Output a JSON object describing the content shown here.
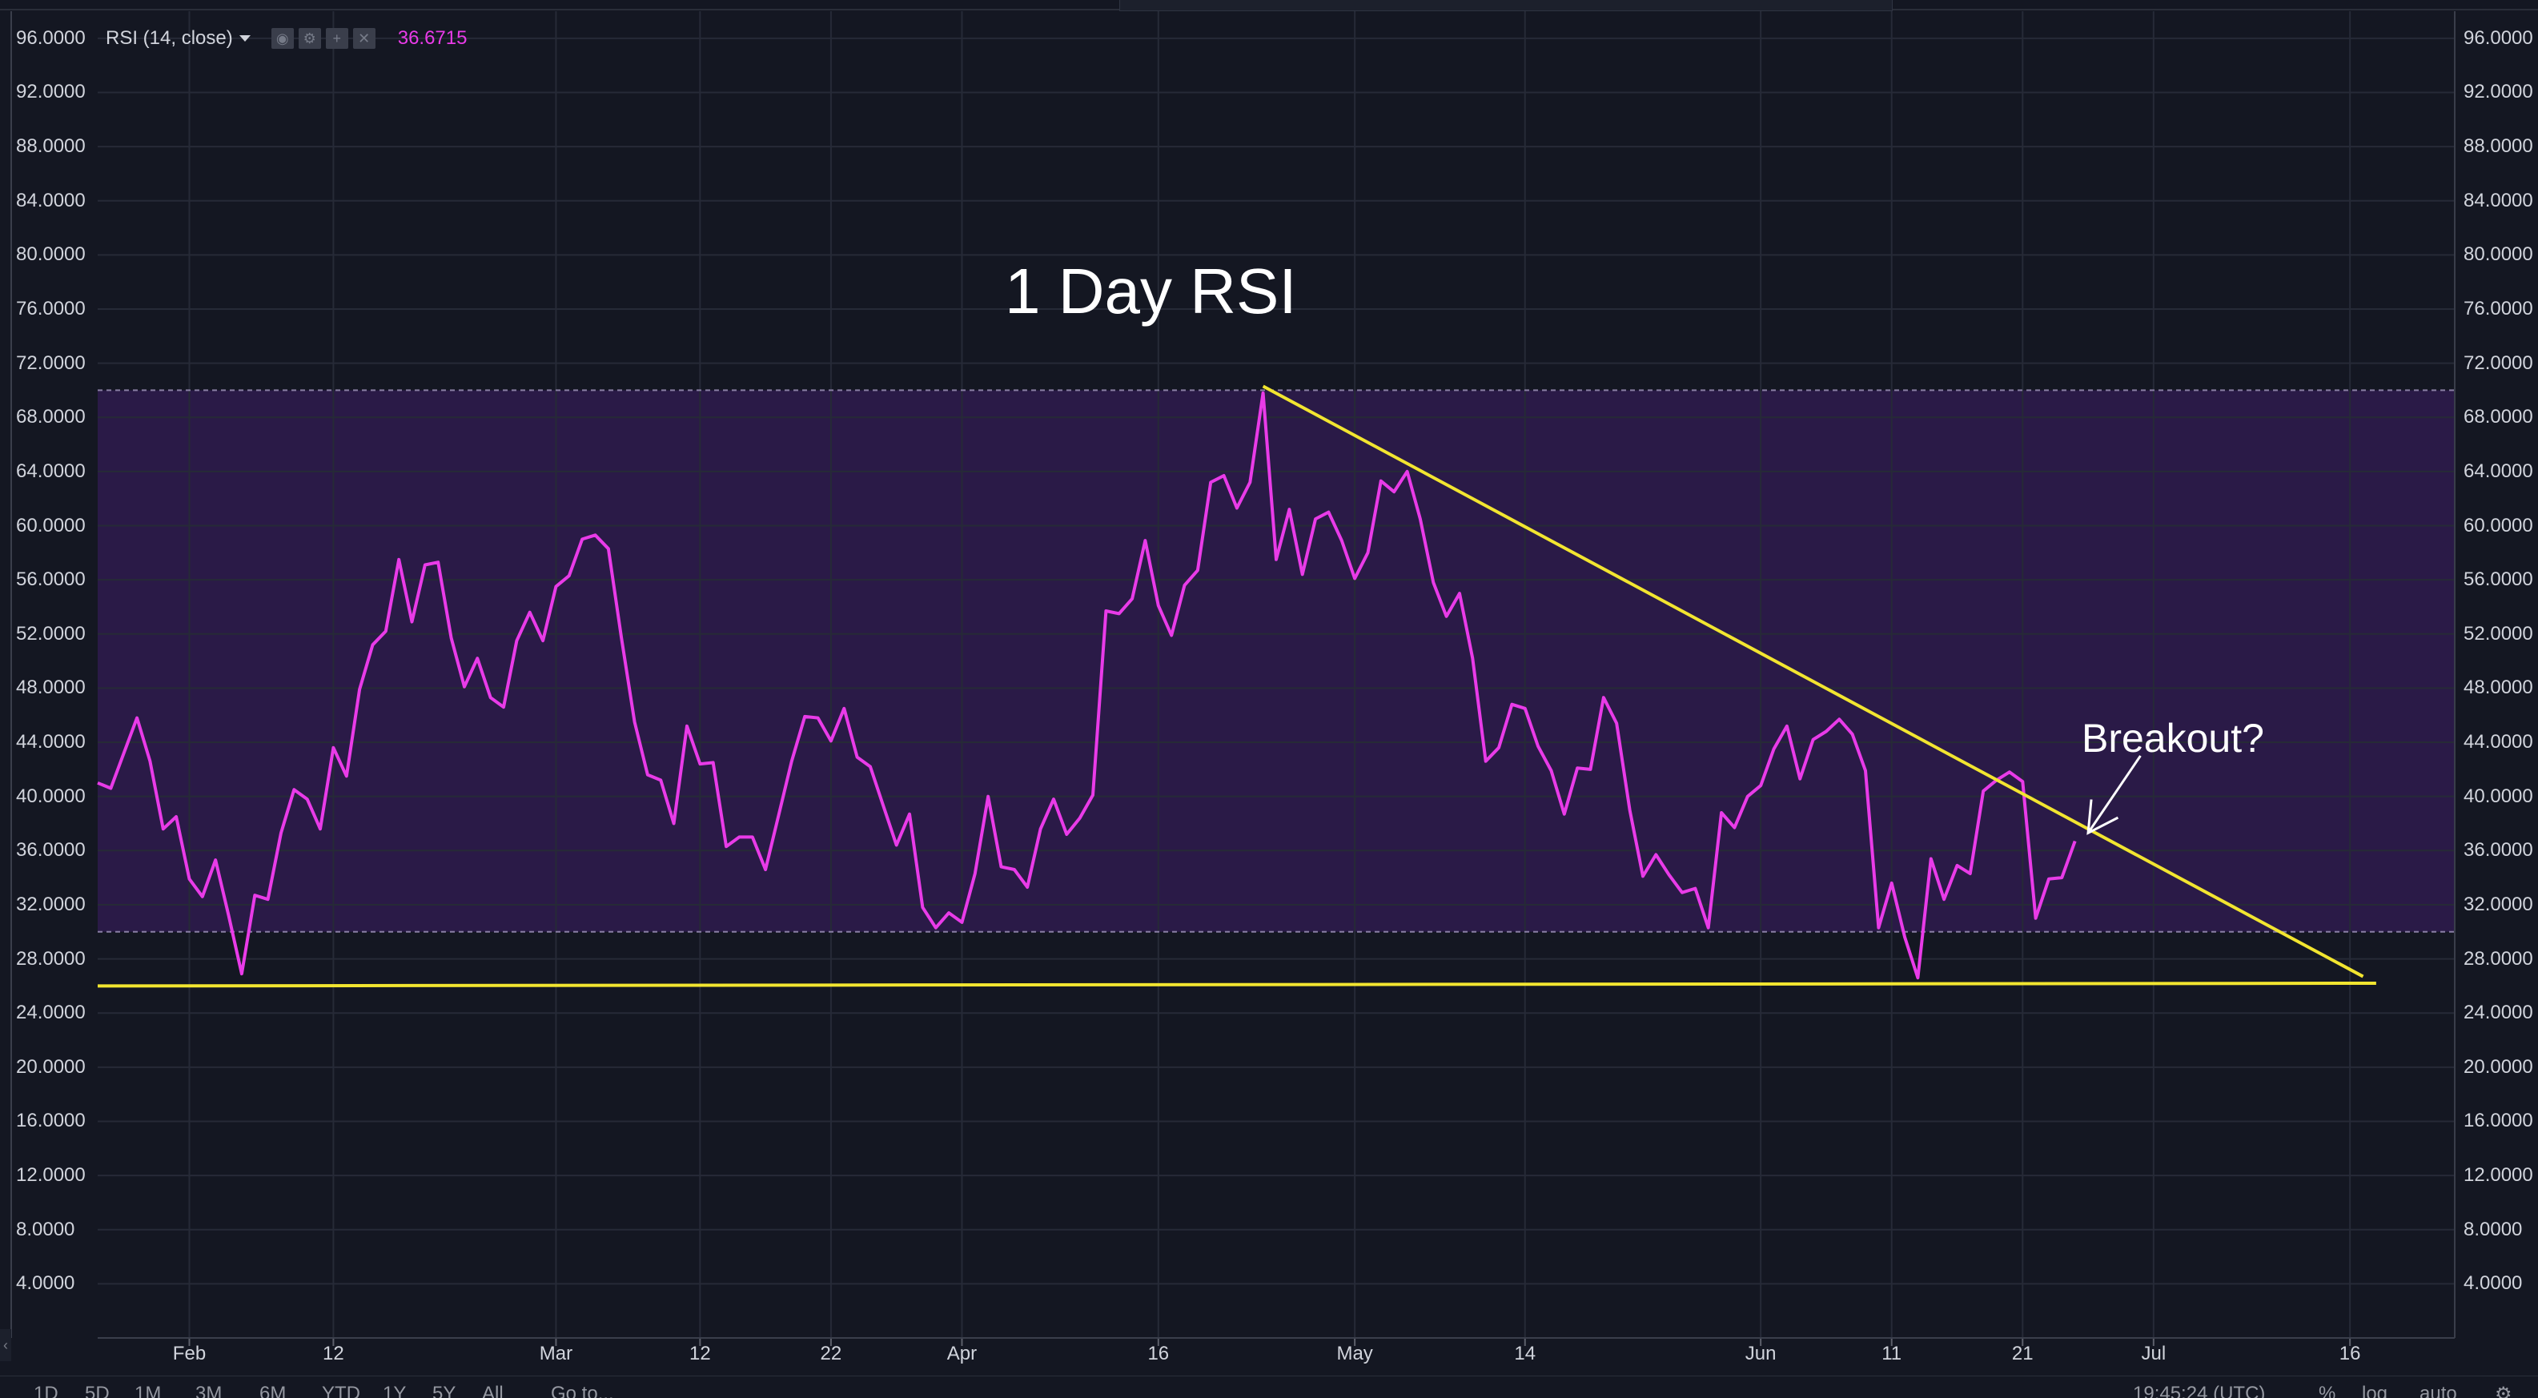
{
  "indicator": {
    "label": "RSI (14, close)",
    "value": "36.6715",
    "buttons": [
      "eye-icon",
      "gear-icon",
      "plus-icon",
      "close-icon"
    ],
    "line_color": "#e93be8",
    "band_color": "#2a1a47"
  },
  "colors": {
    "background": "#141722",
    "grid": "#262a37",
    "trendline": "#f2e530",
    "text": "#d1d4dc"
  },
  "annotations": {
    "title": "1 Day RSI",
    "breakout": "Breakout?"
  },
  "bottom_toolbar": {
    "ranges": [
      "1D",
      "5D",
      "1M",
      "3M",
      "6M",
      "YTD",
      "1Y",
      "5Y",
      "All"
    ],
    "goto": "Go to...",
    "time": "19:45:24 (UTC)",
    "percent": "%",
    "log": "log",
    "auto": "auto"
  },
  "chart_data": {
    "type": "line",
    "title": "1 Day RSI",
    "xlabel": "",
    "ylabel": "",
    "x_range": [
      "2018-01-25",
      "2018-07-24"
    ],
    "ylim": [
      0,
      98
    ],
    "y_ticks": [
      "4.0000",
      "8.0000",
      "12.0000",
      "16.0000",
      "20.0000",
      "24.0000",
      "28.0000",
      "32.0000",
      "36.0000",
      "40.0000",
      "44.0000",
      "48.0000",
      "52.0000",
      "56.0000",
      "60.0000",
      "64.0000",
      "68.0000",
      "72.0000",
      "76.0000",
      "80.0000",
      "84.0000",
      "88.0000",
      "92.0000",
      "96.0000"
    ],
    "x_ticks": [
      {
        "label": "Feb",
        "date": "2018-02-01"
      },
      {
        "label": "12",
        "date": "2018-02-12"
      },
      {
        "label": "Mar",
        "date": "2018-03-01"
      },
      {
        "label": "12",
        "date": "2018-03-12"
      },
      {
        "label": "22",
        "date": "2018-03-22"
      },
      {
        "label": "Apr",
        "date": "2018-04-01"
      },
      {
        "label": "16",
        "date": "2018-04-16"
      },
      {
        "label": "May",
        "date": "2018-05-01"
      },
      {
        "label": "14",
        "date": "2018-05-14"
      },
      {
        "label": "Jun",
        "date": "2018-06-01"
      },
      {
        "label": "11",
        "date": "2018-06-11"
      },
      {
        "label": "21",
        "date": "2018-06-21"
      },
      {
        "label": "Jul",
        "date": "2018-07-01"
      },
      {
        "label": "16",
        "date": "2018-07-16"
      }
    ],
    "bands": {
      "upper": 70,
      "lower": 30
    },
    "grid": true,
    "legend": "top-left",
    "series": [
      {
        "name": "RSI (14, close)",
        "points": [
          {
            "date": "2018-01-25",
            "value": 41.0
          },
          {
            "date": "2018-01-26",
            "value": 40.6
          },
          {
            "date": "2018-01-27",
            "value": 43.2
          },
          {
            "date": "2018-01-28",
            "value": 45.8
          },
          {
            "date": "2018-01-29",
            "value": 42.6
          },
          {
            "date": "2018-01-30",
            "value": 37.6
          },
          {
            "date": "2018-01-31",
            "value": 38.5
          },
          {
            "date": "2018-02-01",
            "value": 33.9
          },
          {
            "date": "2018-02-02",
            "value": 32.6
          },
          {
            "date": "2018-02-03",
            "value": 35.3
          },
          {
            "date": "2018-02-04",
            "value": 31.2
          },
          {
            "date": "2018-02-05",
            "value": 26.9
          },
          {
            "date": "2018-02-06",
            "value": 32.7
          },
          {
            "date": "2018-02-07",
            "value": 32.4
          },
          {
            "date": "2018-02-08",
            "value": 37.3
          },
          {
            "date": "2018-02-09",
            "value": 40.5
          },
          {
            "date": "2018-02-10",
            "value": 39.8
          },
          {
            "date": "2018-02-11",
            "value": 37.6
          },
          {
            "date": "2018-02-12",
            "value": 43.6
          },
          {
            "date": "2018-02-13",
            "value": 41.5
          },
          {
            "date": "2018-02-14",
            "value": 47.9
          },
          {
            "date": "2018-02-15",
            "value": 51.2
          },
          {
            "date": "2018-02-16",
            "value": 52.2
          },
          {
            "date": "2018-02-17",
            "value": 57.5
          },
          {
            "date": "2018-02-18",
            "value": 52.9
          },
          {
            "date": "2018-02-19",
            "value": 57.1
          },
          {
            "date": "2018-02-20",
            "value": 57.3
          },
          {
            "date": "2018-02-21",
            "value": 51.7
          },
          {
            "date": "2018-02-22",
            "value": 48.1
          },
          {
            "date": "2018-02-23",
            "value": 50.2
          },
          {
            "date": "2018-02-24",
            "value": 47.3
          },
          {
            "date": "2018-02-25",
            "value": 46.6
          },
          {
            "date": "2018-02-26",
            "value": 51.5
          },
          {
            "date": "2018-02-27",
            "value": 53.6
          },
          {
            "date": "2018-02-28",
            "value": 51.5
          },
          {
            "date": "2018-03-01",
            "value": 55.5
          },
          {
            "date": "2018-03-02",
            "value": 56.3
          },
          {
            "date": "2018-03-03",
            "value": 59.0
          },
          {
            "date": "2018-03-04",
            "value": 59.3
          },
          {
            "date": "2018-03-05",
            "value": 58.3
          },
          {
            "date": "2018-03-06",
            "value": 51.7
          },
          {
            "date": "2018-03-07",
            "value": 45.5
          },
          {
            "date": "2018-03-08",
            "value": 41.6
          },
          {
            "date": "2018-03-09",
            "value": 41.2
          },
          {
            "date": "2018-03-10",
            "value": 38.0
          },
          {
            "date": "2018-03-11",
            "value": 45.2
          },
          {
            "date": "2018-03-12",
            "value": 42.4
          },
          {
            "date": "2018-03-13",
            "value": 42.5
          },
          {
            "date": "2018-03-14",
            "value": 36.3
          },
          {
            "date": "2018-03-15",
            "value": 37.0
          },
          {
            "date": "2018-03-16",
            "value": 37.0
          },
          {
            "date": "2018-03-17",
            "value": 34.6
          },
          {
            "date": "2018-03-18",
            "value": 38.6
          },
          {
            "date": "2018-03-19",
            "value": 42.6
          },
          {
            "date": "2018-03-20",
            "value": 45.9
          },
          {
            "date": "2018-03-21",
            "value": 45.8
          },
          {
            "date": "2018-03-22",
            "value": 44.1
          },
          {
            "date": "2018-03-23",
            "value": 46.5
          },
          {
            "date": "2018-03-24",
            "value": 42.9
          },
          {
            "date": "2018-03-25",
            "value": 42.2
          },
          {
            "date": "2018-03-26",
            "value": 39.3
          },
          {
            "date": "2018-03-27",
            "value": 36.4
          },
          {
            "date": "2018-03-28",
            "value": 38.7
          },
          {
            "date": "2018-03-29",
            "value": 31.8
          },
          {
            "date": "2018-03-30",
            "value": 30.3
          },
          {
            "date": "2018-03-31",
            "value": 31.4
          },
          {
            "date": "2018-04-01",
            "value": 30.7
          },
          {
            "date": "2018-04-02",
            "value": 34.3
          },
          {
            "date": "2018-04-03",
            "value": 40.0
          },
          {
            "date": "2018-04-04",
            "value": 34.8
          },
          {
            "date": "2018-04-05",
            "value": 34.6
          },
          {
            "date": "2018-04-06",
            "value": 33.3
          },
          {
            "date": "2018-04-07",
            "value": 37.6
          },
          {
            "date": "2018-04-08",
            "value": 39.8
          },
          {
            "date": "2018-04-09",
            "value": 37.2
          },
          {
            "date": "2018-04-10",
            "value": 38.4
          },
          {
            "date": "2018-04-11",
            "value": 40.1
          },
          {
            "date": "2018-04-12",
            "value": 53.7
          },
          {
            "date": "2018-04-13",
            "value": 53.5
          },
          {
            "date": "2018-04-14",
            "value": 54.6
          },
          {
            "date": "2018-04-15",
            "value": 58.9
          },
          {
            "date": "2018-04-16",
            "value": 54.1
          },
          {
            "date": "2018-04-17",
            "value": 51.9
          },
          {
            "date": "2018-04-18",
            "value": 55.6
          },
          {
            "date": "2018-04-19",
            "value": 56.7
          },
          {
            "date": "2018-04-20",
            "value": 63.2
          },
          {
            "date": "2018-04-21",
            "value": 63.7
          },
          {
            "date": "2018-04-22",
            "value": 61.3
          },
          {
            "date": "2018-04-23",
            "value": 63.2
          },
          {
            "date": "2018-04-24",
            "value": 69.8
          },
          {
            "date": "2018-04-25",
            "value": 57.5
          },
          {
            "date": "2018-04-26",
            "value": 61.2
          },
          {
            "date": "2018-04-27",
            "value": 56.4
          },
          {
            "date": "2018-04-28",
            "value": 60.5
          },
          {
            "date": "2018-04-29",
            "value": 61.0
          },
          {
            "date": "2018-04-30",
            "value": 58.9
          },
          {
            "date": "2018-05-01",
            "value": 56.1
          },
          {
            "date": "2018-05-02",
            "value": 58.0
          },
          {
            "date": "2018-05-03",
            "value": 63.3
          },
          {
            "date": "2018-05-04",
            "value": 62.5
          },
          {
            "date": "2018-05-05",
            "value": 64.0
          },
          {
            "date": "2018-05-06",
            "value": 60.5
          },
          {
            "date": "2018-05-07",
            "value": 55.8
          },
          {
            "date": "2018-05-08",
            "value": 53.3
          },
          {
            "date": "2018-05-09",
            "value": 55.0
          },
          {
            "date": "2018-05-10",
            "value": 50.2
          },
          {
            "date": "2018-05-11",
            "value": 42.6
          },
          {
            "date": "2018-05-12",
            "value": 43.6
          },
          {
            "date": "2018-05-13",
            "value": 46.8
          },
          {
            "date": "2018-05-14",
            "value": 46.5
          },
          {
            "date": "2018-05-15",
            "value": 43.7
          },
          {
            "date": "2018-05-16",
            "value": 41.9
          },
          {
            "date": "2018-05-17",
            "value": 38.7
          },
          {
            "date": "2018-05-18",
            "value": 42.1
          },
          {
            "date": "2018-05-19",
            "value": 42.0
          },
          {
            "date": "2018-05-20",
            "value": 47.3
          },
          {
            "date": "2018-05-21",
            "value": 45.4
          },
          {
            "date": "2018-05-22",
            "value": 39.0
          },
          {
            "date": "2018-05-23",
            "value": 34.1
          },
          {
            "date": "2018-05-24",
            "value": 35.7
          },
          {
            "date": "2018-05-25",
            "value": 34.2
          },
          {
            "date": "2018-05-26",
            "value": 32.9
          },
          {
            "date": "2018-05-27",
            "value": 33.2
          },
          {
            "date": "2018-05-28",
            "value": 30.3
          },
          {
            "date": "2018-05-29",
            "value": 38.8
          },
          {
            "date": "2018-05-30",
            "value": 37.7
          },
          {
            "date": "2018-05-31",
            "value": 40.0
          },
          {
            "date": "2018-06-01",
            "value": 40.8
          },
          {
            "date": "2018-06-02",
            "value": 43.5
          },
          {
            "date": "2018-06-03",
            "value": 45.2
          },
          {
            "date": "2018-06-04",
            "value": 41.3
          },
          {
            "date": "2018-06-05",
            "value": 44.2
          },
          {
            "date": "2018-06-06",
            "value": 44.8
          },
          {
            "date": "2018-06-07",
            "value": 45.7
          },
          {
            "date": "2018-06-08",
            "value": 44.6
          },
          {
            "date": "2018-06-09",
            "value": 41.9
          },
          {
            "date": "2018-06-10",
            "value": 30.3
          },
          {
            "date": "2018-06-11",
            "value": 33.6
          },
          {
            "date": "2018-06-12",
            "value": 29.6
          },
          {
            "date": "2018-06-13",
            "value": 26.6
          },
          {
            "date": "2018-06-14",
            "value": 35.4
          },
          {
            "date": "2018-06-15",
            "value": 32.4
          },
          {
            "date": "2018-06-16",
            "value": 34.9
          },
          {
            "date": "2018-06-17",
            "value": 34.3
          },
          {
            "date": "2018-06-18",
            "value": 40.4
          },
          {
            "date": "2018-06-19",
            "value": 41.2
          },
          {
            "date": "2018-06-20",
            "value": 41.8
          },
          {
            "date": "2018-06-21",
            "value": 41.1
          },
          {
            "date": "2018-06-22",
            "value": 31.0
          },
          {
            "date": "2018-06-23",
            "value": 33.9
          },
          {
            "date": "2018-06-24",
            "value": 34.0
          },
          {
            "date": "2018-06-25",
            "value": 36.7
          }
        ]
      }
    ],
    "trendlines": [
      {
        "name": "descending-resistance",
        "from": {
          "date": "2018-04-24",
          "value": 70.3
        },
        "to": {
          "date": "2018-07-17",
          "value": 26.7
        }
      },
      {
        "name": "horizontal-support",
        "from": {
          "date": "2018-01-25",
          "value": 26.0
        },
        "to": {
          "date": "2018-07-18",
          "value": 26.2
        }
      }
    ],
    "arrow": {
      "from": {
        "date": "2018-06-30",
        "value": 43.0
      },
      "to": {
        "date": "2018-06-26",
        "value": 37.3
      }
    }
  }
}
